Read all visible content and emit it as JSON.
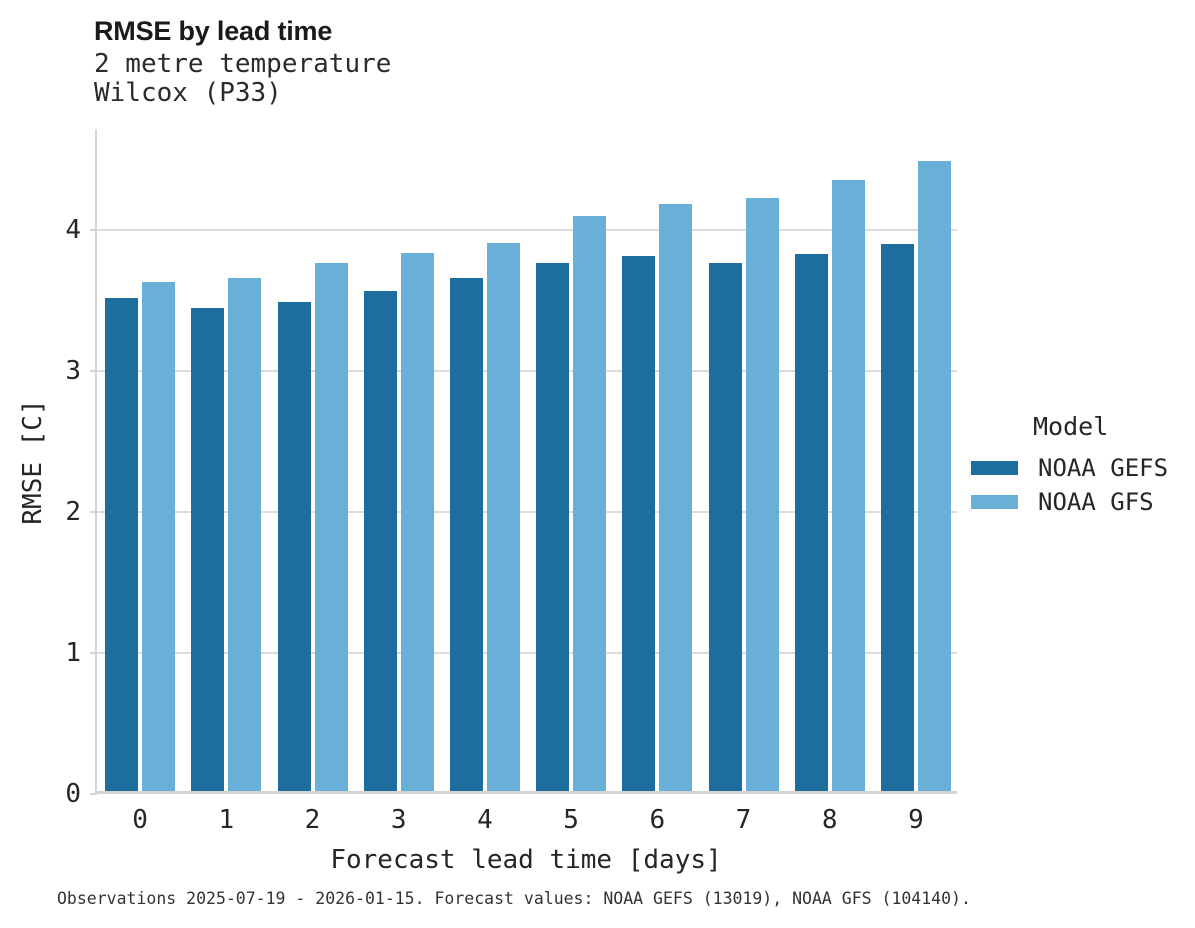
{
  "header": {
    "title": "RMSE by lead time",
    "subtitle_lines": [
      "2 metre temperature",
      "Wilcox (P33)"
    ]
  },
  "chart_data": {
    "type": "bar",
    "title": "RMSE by lead time",
    "subtitle": [
      "2 metre temperature",
      "Wilcox (P33)"
    ],
    "categories": [
      "0",
      "1",
      "2",
      "3",
      "4",
      "5",
      "6",
      "7",
      "8",
      "9"
    ],
    "series": [
      {
        "name": "NOAA GEFS",
        "color": "#1d6e9d",
        "values": [
          3.5,
          3.43,
          3.47,
          3.55,
          3.64,
          3.75,
          3.8,
          3.75,
          3.81,
          3.88
        ]
      },
      {
        "name": "NOAA GFS",
        "color": "#69b0d8",
        "values": [
          3.61,
          3.64,
          3.75,
          3.82,
          3.89,
          4.08,
          4.17,
          4.21,
          4.34,
          4.47
        ]
      }
    ],
    "xlabel": "Forecast lead time [days]",
    "ylabel": "RMSE [C]",
    "ylim": [
      0,
      4.72
    ],
    "yticks": [
      0,
      1,
      2,
      3,
      4
    ],
    "grid": true,
    "grid_color": "#dcdcdc",
    "background": "#ffffff",
    "legend_position": "right"
  },
  "legend": {
    "title": "Model",
    "items": [
      {
        "label": "NOAA GEFS",
        "color": "#1d6e9d"
      },
      {
        "label": "NOAA GFS",
        "color": "#69b0d8"
      }
    ]
  },
  "footer": {
    "text": "Observations 2025-07-19 - 2026-01-15. Forecast values: NOAA GEFS (13019), NOAA GFS (104140)."
  }
}
